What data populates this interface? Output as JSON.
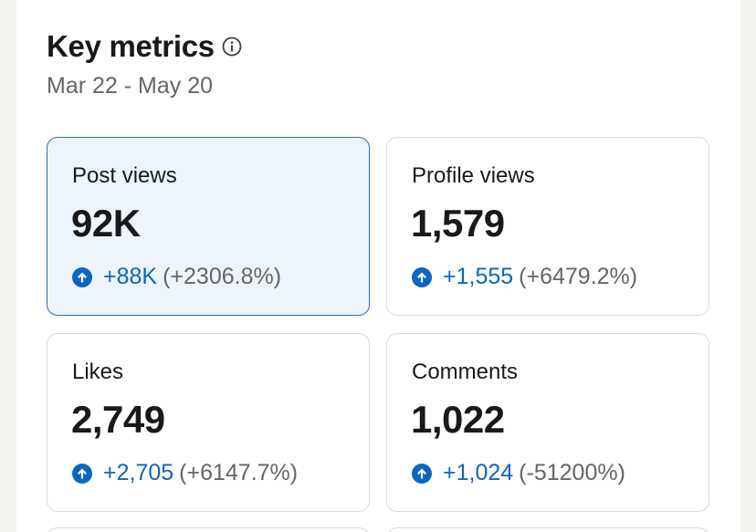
{
  "header": {
    "title": "Key metrics",
    "date_range": "Mar 22 - May 20"
  },
  "metrics": [
    {
      "label": "Post views",
      "value": "92K",
      "delta": "+88K",
      "pct": "(+2306.8%)",
      "active": true
    },
    {
      "label": "Profile views",
      "value": "1,579",
      "delta": "+1,555",
      "pct": "(+6479.2%)",
      "active": false
    },
    {
      "label": "Likes",
      "value": "2,749",
      "delta": "+2,705",
      "pct": "(+6147.7%)",
      "active": false
    },
    {
      "label": "Comments",
      "value": "1,022",
      "delta": "+1,024",
      "pct": "(-51200%)",
      "active": false
    }
  ],
  "colors": {
    "accent": "#0a66c2",
    "active_border": "#2a6db5",
    "active_background": "#eef4fc",
    "muted_text": "#666666",
    "primary_text": "#191919"
  },
  "icons": {
    "info": "info-icon",
    "trend": "arrow-up-circle-icon"
  }
}
